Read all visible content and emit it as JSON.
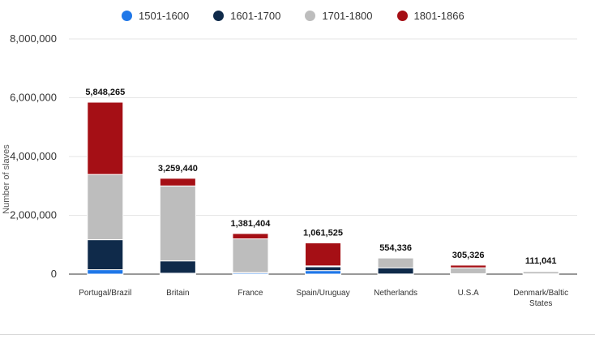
{
  "chart_data": {
    "type": "bar",
    "stacked": true,
    "categories": [
      "Portugal/Brazil",
      "Britain",
      "France",
      "Spain/Uruguay",
      "Netherlands",
      "U.S.A",
      "Denmark/Baltic States"
    ],
    "category_lines": [
      [
        "Portugal/Brazil"
      ],
      [
        "Britain"
      ],
      [
        "France"
      ],
      [
        "Spain/Uruguay"
      ],
      [
        "Netherlands"
      ],
      [
        "U.S.A"
      ],
      [
        "Denmark/Baltic",
        "States"
      ]
    ],
    "series": [
      {
        "name": "1501-1600",
        "color": "#1f77e8",
        "values": [
          150000,
          30000,
          40000,
          120000,
          5000,
          0,
          0
        ]
      },
      {
        "name": "1601-1700",
        "color": "#0f2a4a",
        "values": [
          1020000,
          420000,
          10000,
          130000,
          210000,
          15000,
          10000
        ]
      },
      {
        "name": "1701-1800",
        "color": "#bdbdbd",
        "values": [
          2220000,
          2550000,
          1150000,
          30000,
          335000,
          200000,
          80000
        ]
      },
      {
        "name": "1801-1866",
        "color": "#a50f15",
        "values": [
          2458265,
          259440,
          181404,
          781525,
          4336,
          90326,
          21041
        ]
      }
    ],
    "totals": [
      "5,848,265",
      "3,259,440",
      "1,381,404",
      "1,061,525",
      "554,336",
      "305,326",
      "111,041"
    ],
    "ylim": [
      0,
      8000000
    ],
    "yticks": [
      0,
      2000000,
      4000000,
      6000000,
      8000000
    ],
    "ytick_labels": [
      "0",
      "2,000,000",
      "4,000,000",
      "6,000,000",
      "8,000,000"
    ],
    "ylabel": "Number of slaves",
    "xlabel": "",
    "title": "",
    "legend_position": "top",
    "grid": true
  }
}
